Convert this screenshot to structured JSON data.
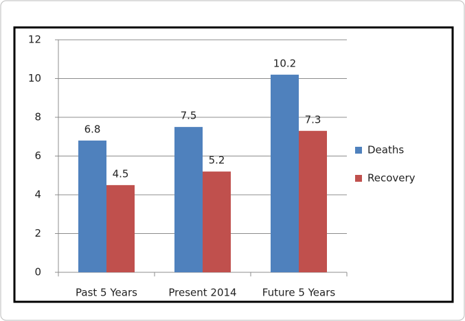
{
  "chart_data": {
    "type": "bar",
    "categories": [
      "Past 5 Years",
      "Present 2014",
      "Future 5 Years"
    ],
    "series": [
      {
        "name": "Deaths",
        "color": "#4f81bd",
        "values": [
          6.8,
          7.5,
          10.2
        ]
      },
      {
        "name": "Recovery",
        "color": "#c0504d",
        "values": [
          4.5,
          5.2,
          7.3
        ]
      }
    ],
    "ylim": [
      0,
      12
    ],
    "yticks": [
      0,
      2,
      4,
      6,
      8,
      10,
      12
    ],
    "grid": true,
    "legend": "right"
  }
}
